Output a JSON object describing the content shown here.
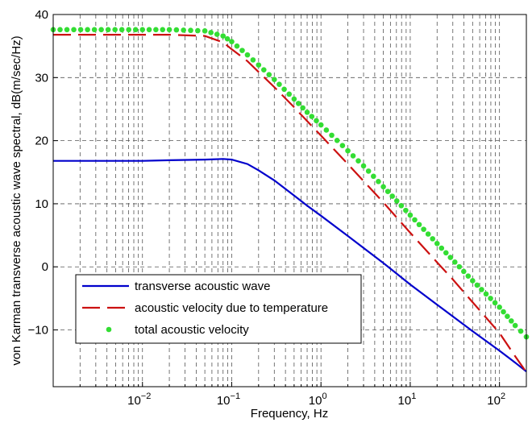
{
  "chart_data": {
    "type": "line",
    "title": "",
    "xlabel": "Frequency, Hz",
    "ylabel": "von Karman transverse acoustic wave spectral, dB(m/sec/Hz)",
    "x_scale": "log",
    "xlim": [
      0.001,
      200
    ],
    "ylim": [
      -19,
      40
    ],
    "x_ticks": [
      {
        "value": 0.01,
        "base": "10",
        "exp": "-2"
      },
      {
        "value": 0.1,
        "base": "10",
        "exp": "-1"
      },
      {
        "value": 1,
        "base": "10",
        "exp": "0"
      },
      {
        "value": 10,
        "base": "10",
        "exp": "1"
      },
      {
        "value": 100,
        "base": "10",
        "exp": "2"
      }
    ],
    "y_ticks": [
      -10,
      0,
      10,
      20,
      30,
      40
    ],
    "grid": true,
    "legend_position": "lower-left",
    "series": [
      {
        "name": "transverse acoustic wave",
        "color": "#0000cc",
        "style": "solid",
        "points": [
          [
            0.001,
            16.8
          ],
          [
            0.01,
            16.8
          ],
          [
            0.02,
            16.9
          ],
          [
            0.05,
            17.0
          ],
          [
            0.08,
            17.1
          ],
          [
            0.1,
            17.0
          ],
          [
            0.15,
            16.3
          ],
          [
            0.2,
            15.3
          ],
          [
            0.3,
            13.7
          ],
          [
            0.5,
            11.3
          ],
          [
            0.7,
            9.7
          ],
          [
            1,
            8.1
          ],
          [
            2,
            4.9
          ],
          [
            3,
            3.0
          ],
          [
            5,
            0.6
          ],
          [
            10,
            -2.8
          ],
          [
            20,
            -6.0
          ],
          [
            50,
            -10.2
          ],
          [
            100,
            -13.3
          ],
          [
            150,
            -15.2
          ],
          [
            200,
            -16.6
          ]
        ]
      },
      {
        "name": "acoustic velocity due to temperature",
        "color": "#cc1111",
        "style": "dashed",
        "points": [
          [
            0.001,
            36.8
          ],
          [
            0.01,
            36.8
          ],
          [
            0.02,
            36.8
          ],
          [
            0.05,
            36.6
          ],
          [
            0.08,
            35.6
          ],
          [
            0.1,
            34.5
          ],
          [
            0.15,
            32.6
          ],
          [
            0.2,
            30.9
          ],
          [
            0.3,
            28.5
          ],
          [
            0.5,
            25.3
          ],
          [
            0.7,
            23.1
          ],
          [
            1,
            20.8
          ],
          [
            2,
            16.3
          ],
          [
            3,
            13.6
          ],
          [
            5,
            10.2
          ],
          [
            10,
            5.4
          ],
          [
            20,
            0.7
          ],
          [
            30,
            -2.0
          ],
          [
            50,
            -5.6
          ],
          [
            100,
            -10.5
          ],
          [
            150,
            -14.2
          ],
          [
            200,
            -16.7
          ]
        ]
      },
      {
        "name": "total acoustic velocity",
        "color": "#33dd33",
        "style": "dots",
        "points": [
          [
            0.001,
            37.6
          ],
          [
            0.01,
            37.6
          ],
          [
            0.02,
            37.6
          ],
          [
            0.05,
            37.4
          ],
          [
            0.08,
            36.6
          ],
          [
            0.1,
            35.7
          ],
          [
            0.15,
            33.6
          ],
          [
            0.2,
            32.0
          ],
          [
            0.3,
            29.7
          ],
          [
            0.5,
            26.6
          ],
          [
            0.7,
            24.5
          ],
          [
            1,
            22.5
          ],
          [
            2,
            18.4
          ],
          [
            3,
            16.0
          ],
          [
            5,
            12.7
          ],
          [
            10,
            8.2
          ],
          [
            20,
            3.7
          ],
          [
            50,
            -2.2
          ],
          [
            100,
            -6.4
          ],
          [
            150,
            -9.3
          ],
          [
            200,
            -11.1
          ]
        ]
      }
    ]
  }
}
